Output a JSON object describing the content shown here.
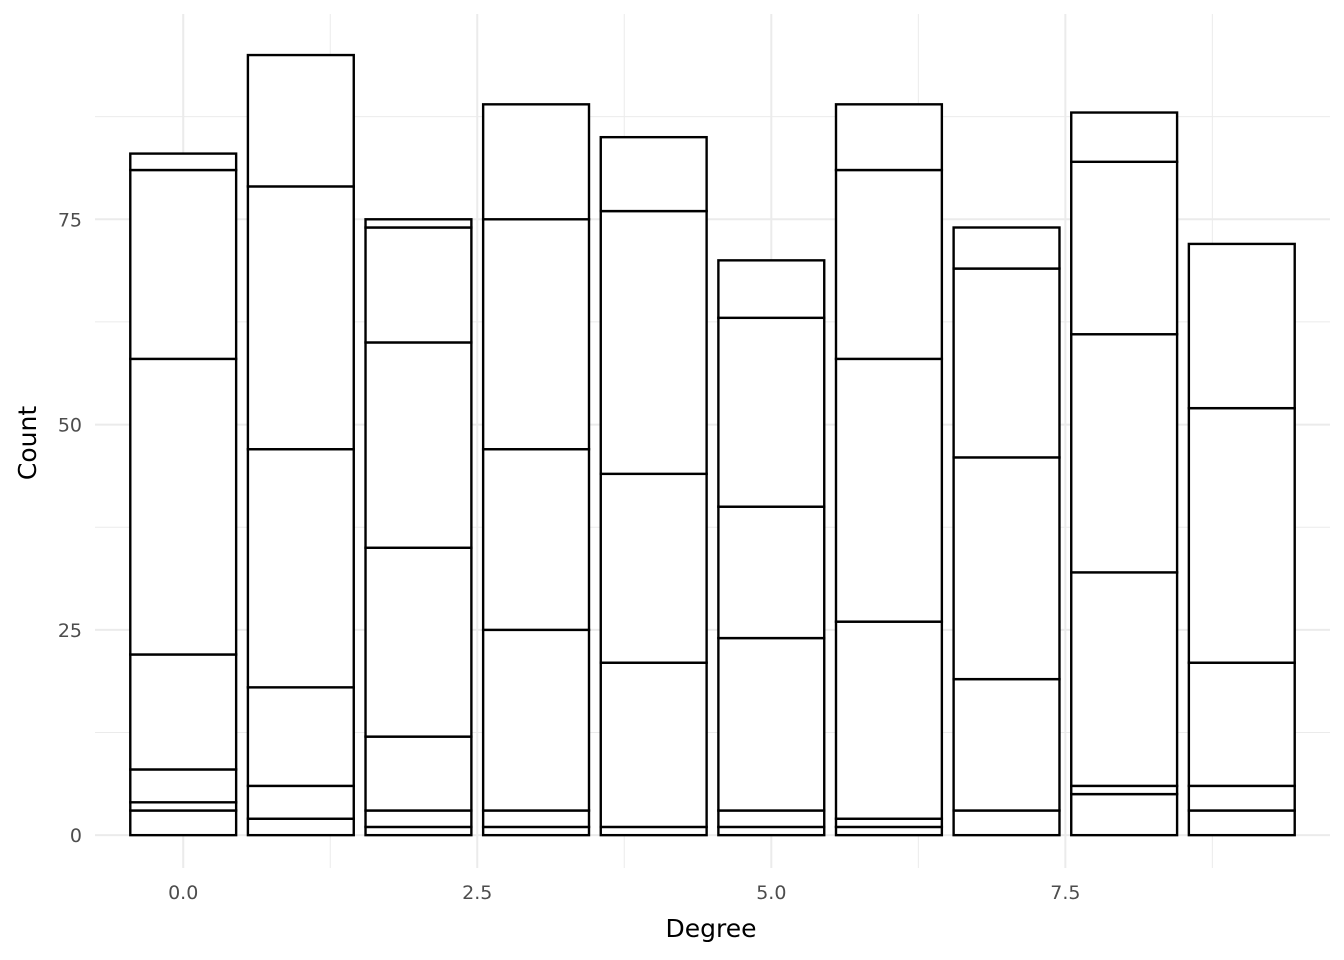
{
  "chart_data": {
    "type": "bar",
    "stacked": true,
    "title": "",
    "xlabel": "Degree",
    "ylabel": "Count",
    "xlim": [
      -0.75,
      9.75
    ],
    "ylim": [
      -4,
      100
    ],
    "x_ticks": [
      0.0,
      2.5,
      5.0,
      7.5
    ],
    "x_tick_labels": [
      "0.0",
      "2.5",
      "5.0",
      "7.5"
    ],
    "y_ticks": [
      0,
      25,
      50,
      75
    ],
    "y_tick_labels": [
      "0",
      "25",
      "50",
      "75"
    ],
    "grid": true,
    "legend": "none",
    "bar_fill": "#ffffff",
    "bar_outline": "#000000",
    "gridline_color": "#ebebeb",
    "bars": [
      {
        "x": 0,
        "cumulative_boundaries": [
          3,
          4,
          8,
          22,
          58,
          81,
          83
        ],
        "total": 83
      },
      {
        "x": 1,
        "cumulative_boundaries": [
          2,
          6,
          18,
          47,
          79,
          95
        ],
        "total": 95
      },
      {
        "x": 2,
        "cumulative_boundaries": [
          1,
          3,
          12,
          35,
          60,
          74,
          75
        ],
        "total": 75
      },
      {
        "x": 3,
        "cumulative_boundaries": [
          1,
          3,
          25,
          47,
          75,
          89
        ],
        "total": 89
      },
      {
        "x": 4,
        "cumulative_boundaries": [
          1,
          21,
          44,
          76,
          85
        ],
        "total": 85
      },
      {
        "x": 5,
        "cumulative_boundaries": [
          1,
          3,
          24,
          40,
          63,
          70
        ],
        "total": 70
      },
      {
        "x": 6,
        "cumulative_boundaries": [
          1,
          2,
          26,
          58,
          81,
          89
        ],
        "total": 89
      },
      {
        "x": 7,
        "cumulative_boundaries": [
          3,
          19,
          46,
          69,
          74
        ],
        "total": 74
      },
      {
        "x": 8,
        "cumulative_boundaries": [
          5,
          6,
          32,
          61,
          82,
          88
        ],
        "total": 88
      },
      {
        "x": 9,
        "cumulative_boundaries": [
          3,
          6,
          21,
          52,
          72
        ],
        "total": 72
      }
    ]
  }
}
